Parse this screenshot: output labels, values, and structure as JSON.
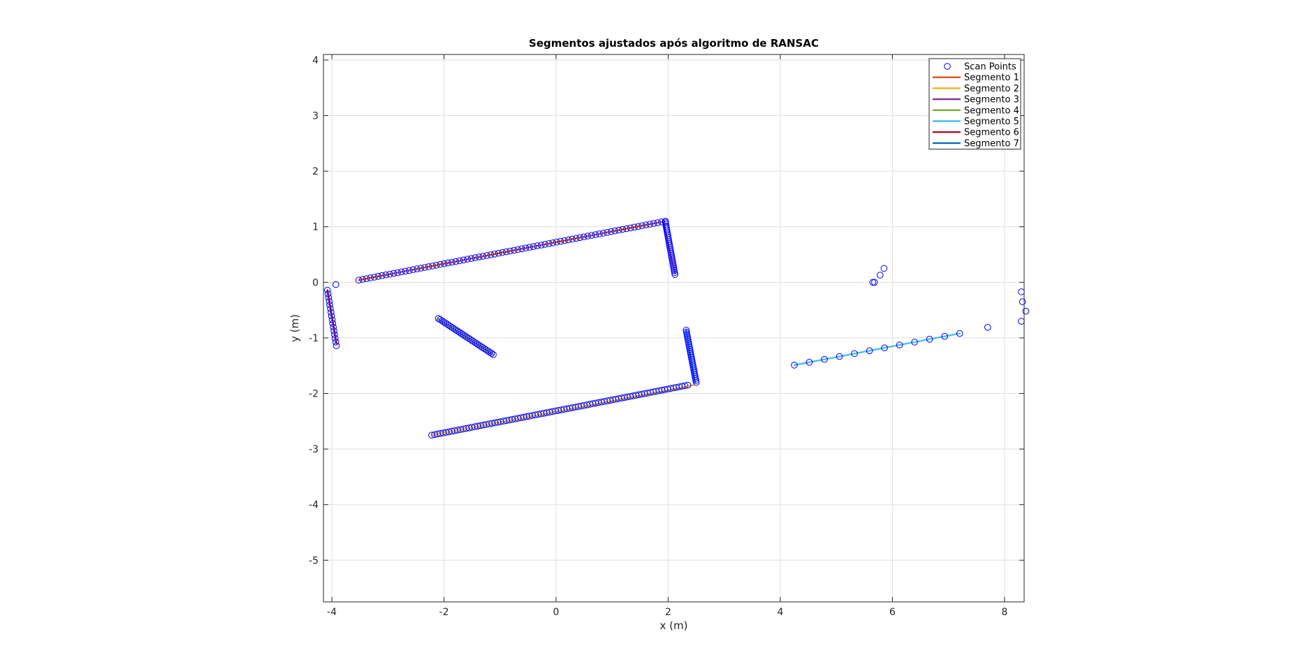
{
  "chart_data": {
    "type": "scatter",
    "title": "Segmentos ajustados após algoritmo de RANSAC",
    "xlabel": "x (m)",
    "ylabel": "y (m)",
    "xlim": [
      -4.15,
      8.35
    ],
    "ylim": [
      -5.75,
      4.1
    ],
    "xticks": [
      -4,
      -2,
      0,
      2,
      4,
      6,
      8
    ],
    "yticks": [
      -5,
      -4,
      -3,
      -2,
      -1,
      0,
      1,
      2,
      3,
      4
    ],
    "grid": true,
    "legend_position": "top-right",
    "scan_points": {
      "name": "Scan Points",
      "color": "#0000ff",
      "groups": [
        {
          "from": [
            -3.52,
            0.04
          ],
          "to": [
            1.95,
            1.1
          ],
          "n": 80
        },
        {
          "from": [
            1.95,
            1.08
          ],
          "to": [
            2.12,
            0.14
          ],
          "n": 28
        },
        {
          "from": [
            -2.1,
            -0.65
          ],
          "to": [
            -1.12,
            -1.3
          ],
          "n": 32
        },
        {
          "from": [
            -4.08,
            -0.14
          ],
          "to": [
            -3.92,
            -1.14
          ],
          "n": 16
        },
        {
          "from": [
            -2.22,
            -2.75
          ],
          "to": [
            2.35,
            -1.85
          ],
          "n": 90
        },
        {
          "from": [
            2.32,
            -0.86
          ],
          "to": [
            2.5,
            -1.8
          ],
          "n": 28
        },
        {
          "from": [
            4.25,
            -1.49
          ],
          "to": [
            7.2,
            -0.92
          ],
          "n": 12
        }
      ],
      "extra": [
        [
          -3.93,
          -0.04
        ],
        [
          5.65,
          0.0
        ],
        [
          5.68,
          0.0
        ],
        [
          5.78,
          0.13
        ],
        [
          5.85,
          0.25
        ],
        [
          7.7,
          -0.81
        ],
        [
          8.3,
          -0.17
        ],
        [
          8.32,
          -0.35
        ],
        [
          8.38,
          -0.52
        ],
        [
          8.3,
          -0.7
        ]
      ]
    },
    "series": [
      {
        "name": "Segmento 1",
        "color": "#d95319",
        "x": [
          -3.52,
          1.95
        ],
        "y": [
          0.04,
          1.1
        ]
      },
      {
        "name": "Segmento 2",
        "color": "#edb120",
        "x": [
          -2.22,
          2.45
        ],
        "y": [
          -2.75,
          -1.85
        ]
      },
      {
        "name": "Segmento 3",
        "color": "#7e2f8e",
        "x": [
          1.92,
          2.12
        ],
        "y": [
          1.07,
          0.16
        ]
      },
      {
        "name": "Segmento 4",
        "color": "#77ac30",
        "x": [
          -2.1,
          -1.12
        ],
        "y": [
          -0.66,
          -1.3
        ]
      },
      {
        "name": "Segmento 5",
        "color": "#4dbeee",
        "x": [
          4.25,
          7.2
        ],
        "y": [
          -1.49,
          -0.92
        ]
      },
      {
        "name": "Segmento 6",
        "color": "#a2142f",
        "x": [
          -4.08,
          -3.92
        ],
        "y": [
          -0.14,
          -1.1
        ]
      },
      {
        "name": "Segmento 7",
        "color": "#0072bd",
        "x": [
          2.32,
          2.48
        ],
        "y": [
          -0.86,
          -1.8
        ]
      }
    ]
  }
}
